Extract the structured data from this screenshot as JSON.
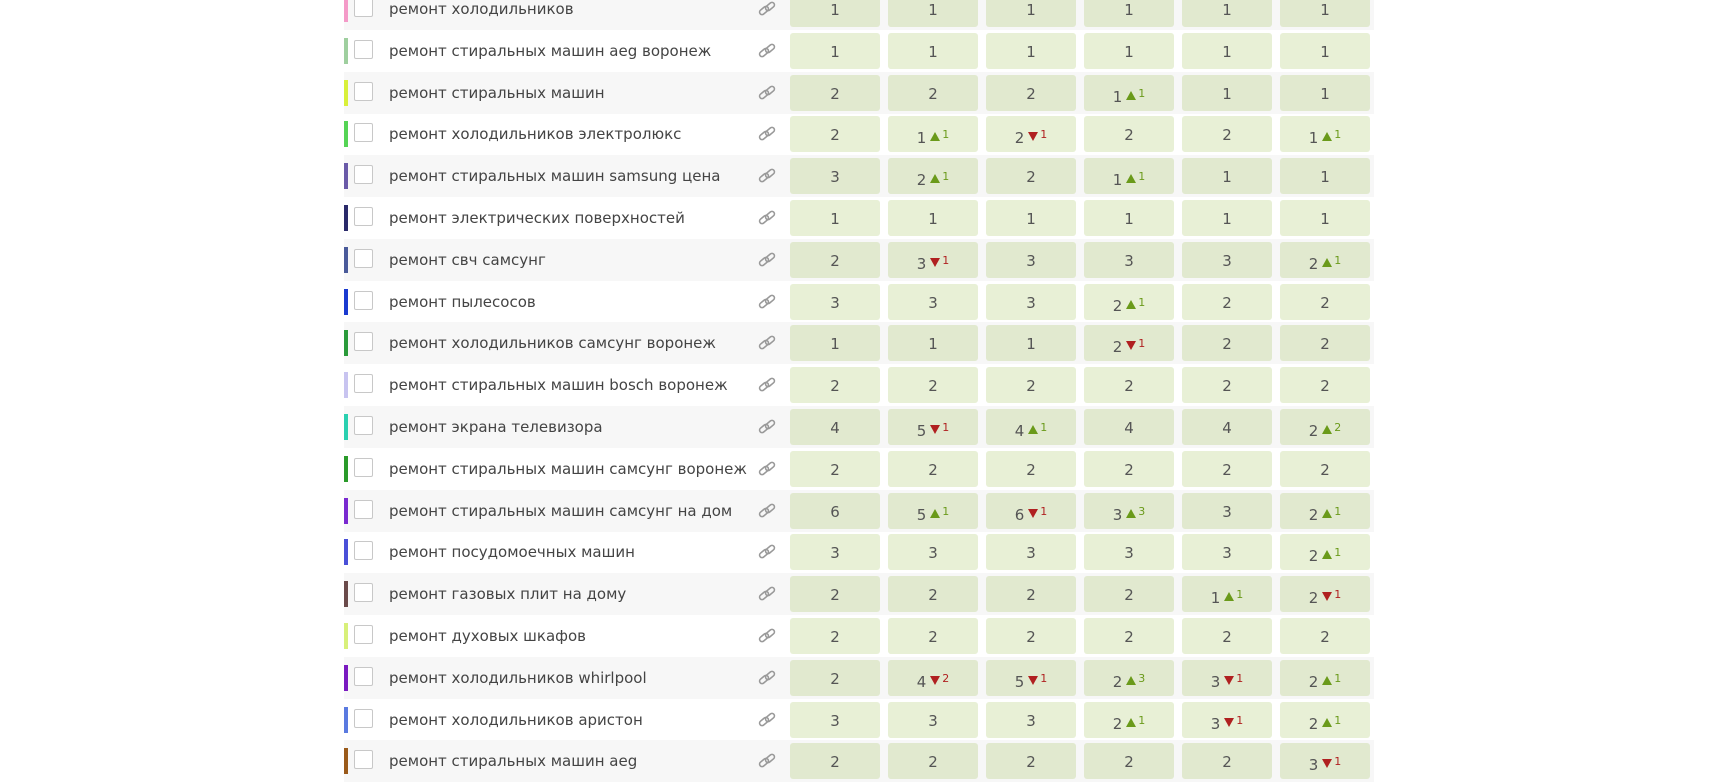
{
  "rows": [
    {
      "color": "#f49ac8",
      "keyword": "ремонт холодильников",
      "cells": [
        {
          "pos": 1
        },
        {
          "pos": 1
        },
        {
          "pos": 1
        },
        {
          "pos": 1
        },
        {
          "pos": 1
        },
        {
          "pos": 1
        }
      ]
    },
    {
      "color": "#9fcf9f",
      "keyword": "ремонт стиральных машин aeg воронеж",
      "cells": [
        {
          "pos": 1
        },
        {
          "pos": 1
        },
        {
          "pos": 1
        },
        {
          "pos": 1
        },
        {
          "pos": 1
        },
        {
          "pos": 1
        }
      ]
    },
    {
      "color": "#d9f03a",
      "keyword": "ремонт стиральных машин",
      "cells": [
        {
          "pos": 2
        },
        {
          "pos": 2
        },
        {
          "pos": 2
        },
        {
          "pos": 1,
          "dir": "up",
          "change": 1
        },
        {
          "pos": 1
        },
        {
          "pos": 1
        }
      ]
    },
    {
      "color": "#55d455",
      "keyword": "ремонт холодильников электролюкс",
      "cells": [
        {
          "pos": 2
        },
        {
          "pos": 1,
          "dir": "up",
          "change": 1
        },
        {
          "pos": 2,
          "dir": "down",
          "change": 1
        },
        {
          "pos": 2
        },
        {
          "pos": 2
        },
        {
          "pos": 1,
          "dir": "up",
          "change": 1
        }
      ]
    },
    {
      "color": "#6a5aa8",
      "keyword": "ремонт стиральных машин samsung цена",
      "cells": [
        {
          "pos": 3
        },
        {
          "pos": 2,
          "dir": "up",
          "change": 1
        },
        {
          "pos": 2
        },
        {
          "pos": 1,
          "dir": "up",
          "change": 1
        },
        {
          "pos": 1
        },
        {
          "pos": 1
        }
      ]
    },
    {
      "color": "#2a2a6a",
      "keyword": "ремонт электрических поверхностей",
      "cells": [
        {
          "pos": 1
        },
        {
          "pos": 1
        },
        {
          "pos": 1
        },
        {
          "pos": 1
        },
        {
          "pos": 1
        },
        {
          "pos": 1
        }
      ]
    },
    {
      "color": "#4a5a9a",
      "keyword": "ремонт свч самсунг",
      "cells": [
        {
          "pos": 2
        },
        {
          "pos": 3,
          "dir": "down",
          "change": 1
        },
        {
          "pos": 3
        },
        {
          "pos": 3
        },
        {
          "pos": 3
        },
        {
          "pos": 2,
          "dir": "up",
          "change": 1
        }
      ]
    },
    {
      "color": "#1a3ad0",
      "keyword": "ремонт пылесосов",
      "cells": [
        {
          "pos": 3
        },
        {
          "pos": 3
        },
        {
          "pos": 3
        },
        {
          "pos": 2,
          "dir": "up",
          "change": 1
        },
        {
          "pos": 2
        },
        {
          "pos": 2
        }
      ]
    },
    {
      "color": "#2a9a3a",
      "keyword": "ремонт холодильников самсунг воронеж",
      "cells": [
        {
          "pos": 1
        },
        {
          "pos": 1
        },
        {
          "pos": 1
        },
        {
          "pos": 2,
          "dir": "down",
          "change": 1
        },
        {
          "pos": 2
        },
        {
          "pos": 2
        }
      ]
    },
    {
      "color": "#c8c4f0",
      "keyword": "ремонт стиральных машин bosch воронеж",
      "cells": [
        {
          "pos": 2
        },
        {
          "pos": 2
        },
        {
          "pos": 2
        },
        {
          "pos": 2
        },
        {
          "pos": 2
        },
        {
          "pos": 2
        }
      ]
    },
    {
      "color": "#2ad0b0",
      "keyword": "ремонт экрана телевизора",
      "cells": [
        {
          "pos": 4
        },
        {
          "pos": 5,
          "dir": "down",
          "change": 1
        },
        {
          "pos": 4,
          "dir": "up",
          "change": 1
        },
        {
          "pos": 4
        },
        {
          "pos": 4
        },
        {
          "pos": 2,
          "dir": "up",
          "change": 2
        }
      ]
    },
    {
      "color": "#2a9a2a",
      "keyword": "ремонт стиральных машин самсунг воронеж",
      "cells": [
        {
          "pos": 2
        },
        {
          "pos": 2
        },
        {
          "pos": 2
        },
        {
          "pos": 2
        },
        {
          "pos": 2
        },
        {
          "pos": 2
        }
      ]
    },
    {
      "color": "#7a2ad0",
      "keyword": "ремонт стиральных машин самсунг на дом",
      "cells": [
        {
          "pos": 6
        },
        {
          "pos": 5,
          "dir": "up",
          "change": 1
        },
        {
          "pos": 6,
          "dir": "down",
          "change": 1
        },
        {
          "pos": 3,
          "dir": "up",
          "change": 3
        },
        {
          "pos": 3
        },
        {
          "pos": 2,
          "dir": "up",
          "change": 1
        }
      ]
    },
    {
      "color": "#4a50d8",
      "keyword": "ремонт посудомоечных машин",
      "cells": [
        {
          "pos": 3
        },
        {
          "pos": 3
        },
        {
          "pos": 3
        },
        {
          "pos": 3
        },
        {
          "pos": 3
        },
        {
          "pos": 2,
          "dir": "up",
          "change": 1
        }
      ]
    },
    {
      "color": "#6a4a4a",
      "keyword": "ремонт газовых плит на дому",
      "cells": [
        {
          "pos": 2
        },
        {
          "pos": 2
        },
        {
          "pos": 2
        },
        {
          "pos": 2
        },
        {
          "pos": 1,
          "dir": "up",
          "change": 1
        },
        {
          "pos": 2,
          "dir": "down",
          "change": 1
        }
      ]
    },
    {
      "color": "#d8f07a",
      "keyword": "ремонт духовых шкафов",
      "cells": [
        {
          "pos": 2
        },
        {
          "pos": 2
        },
        {
          "pos": 2
        },
        {
          "pos": 2
        },
        {
          "pos": 2
        },
        {
          "pos": 2
        }
      ]
    },
    {
      "color": "#7a1ac0",
      "keyword": "ремонт холодильников whirlpool",
      "cells": [
        {
          "pos": 2
        },
        {
          "pos": 4,
          "dir": "down",
          "change": 2
        },
        {
          "pos": 5,
          "dir": "down",
          "change": 1
        },
        {
          "pos": 2,
          "dir": "up",
          "change": 3
        },
        {
          "pos": 3,
          "dir": "down",
          "change": 1
        },
        {
          "pos": 2,
          "dir": "up",
          "change": 1
        }
      ]
    },
    {
      "color": "#5a7ae0",
      "keyword": "ремонт холодильников аристон",
      "cells": [
        {
          "pos": 3
        },
        {
          "pos": 3
        },
        {
          "pos": 3
        },
        {
          "pos": 2,
          "dir": "up",
          "change": 1
        },
        {
          "pos": 3,
          "dir": "down",
          "change": 1
        },
        {
          "pos": 2,
          "dir": "up",
          "change": 1
        }
      ]
    },
    {
      "color": "#9a5a1a",
      "keyword": "ремонт стиральных машин aeg",
      "cells": [
        {
          "pos": 2
        },
        {
          "pos": 2
        },
        {
          "pos": 2
        },
        {
          "pos": 2
        },
        {
          "pos": 2
        },
        {
          "pos": 3,
          "dir": "down",
          "change": 1
        }
      ]
    }
  ]
}
